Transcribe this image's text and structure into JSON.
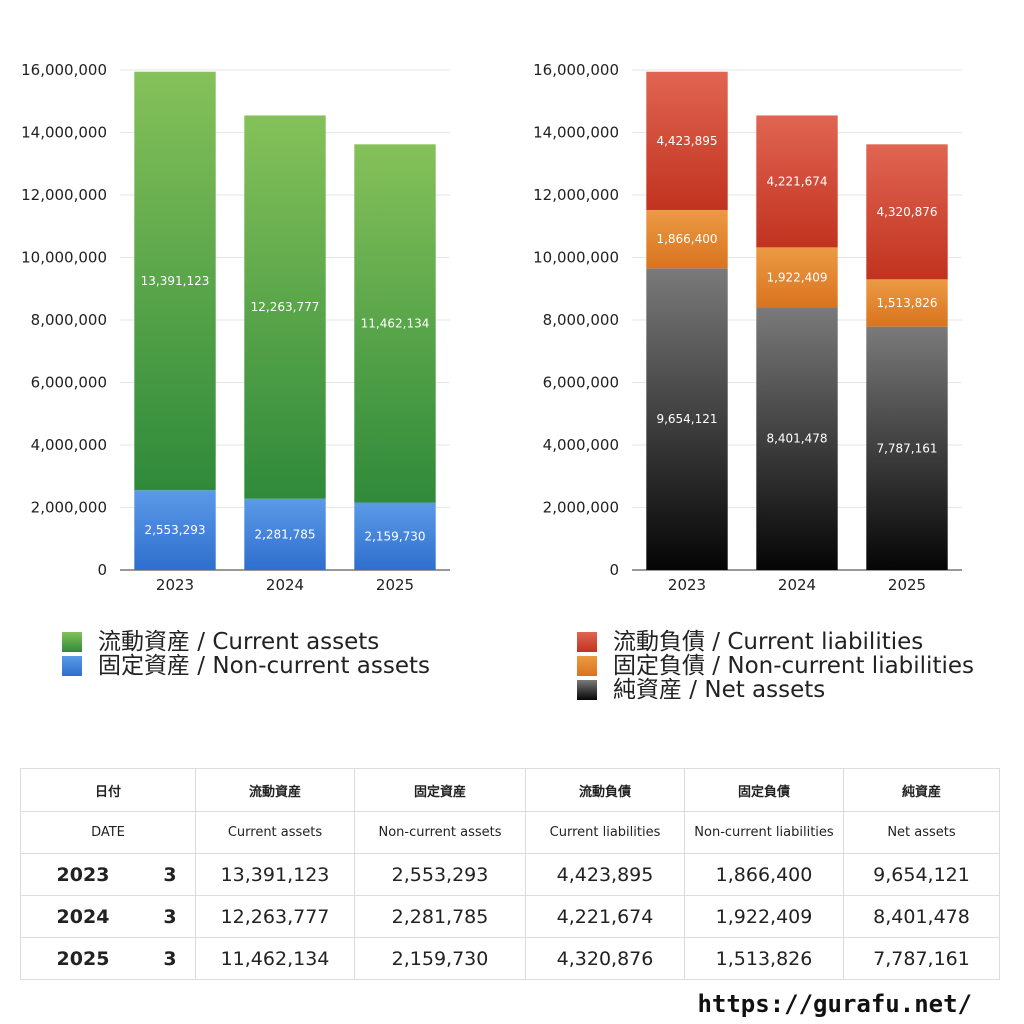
{
  "chart_data": [
    {
      "type": "bar",
      "stacked": true,
      "categories": [
        "2023",
        "2024",
        "2025"
      ],
      "ylim": [
        0,
        16000000
      ],
      "yticks": [
        0,
        2000000,
        4000000,
        6000000,
        8000000,
        10000000,
        12000000,
        14000000,
        16000000
      ],
      "ytick_labels": [
        "0",
        "2,000,000",
        "4,000,000",
        "6,000,000",
        "8,000,000",
        "10,000,000",
        "12,000,000",
        "14,000,000",
        "16,000,000"
      ],
      "grid": true,
      "series": [
        {
          "name": "固定資産 / Non-current assets",
          "values": [
            2553293,
            2281785,
            2159730
          ],
          "labels": [
            "2,553,293",
            "2,281,785",
            "2,159,730"
          ],
          "color_top": "#5b9ae6",
          "color_bottom": "#2f6fce"
        },
        {
          "name": "流動資産 / Current assets",
          "values": [
            13391123,
            12263777,
            11462134
          ],
          "labels": [
            "13,391,123",
            "12,263,777",
            "11,462,134"
          ],
          "color_top": "#85c15a",
          "color_bottom": "#2f8a3a"
        }
      ],
      "legend_order": [
        1,
        0
      ]
    },
    {
      "type": "bar",
      "stacked": true,
      "categories": [
        "2023",
        "2024",
        "2025"
      ],
      "ylim": [
        0,
        16000000
      ],
      "yticks": [
        0,
        2000000,
        4000000,
        6000000,
        8000000,
        10000000,
        12000000,
        14000000,
        16000000
      ],
      "ytick_labels": [
        "0",
        "2,000,000",
        "4,000,000",
        "6,000,000",
        "8,000,000",
        "10,000,000",
        "12,000,000",
        "14,000,000",
        "16,000,000"
      ],
      "grid": true,
      "series": [
        {
          "name": "純資産 / Net assets",
          "values": [
            9654121,
            8401478,
            7787161
          ],
          "labels": [
            "9,654,121",
            "8,401,478",
            "7,787,161"
          ],
          "color_top": "#7a7a7a",
          "color_bottom": "#050505"
        },
        {
          "name": "固定負債 / Non-current liabilities",
          "values": [
            1866400,
            1922409,
            1513826
          ],
          "labels": [
            "1,866,400",
            "1,922,409",
            "1,513,826"
          ],
          "color_top": "#ec9a44",
          "color_bottom": "#d9731f"
        },
        {
          "name": "流動負債 / Current liabilities",
          "values": [
            4423895,
            4221674,
            4320876
          ],
          "labels": [
            "4,423,895",
            "4,221,674",
            "4,320,876"
          ],
          "color_top": "#e06552",
          "color_bottom": "#c1331f"
        }
      ],
      "legend_order": [
        2,
        1,
        0
      ]
    }
  ],
  "table": {
    "header_jp": {
      "date": "日付",
      "ca": "流動資産",
      "nca": "固定資産",
      "cl": "流動負債",
      "ncl": "固定負債",
      "na": "純資産"
    },
    "header_en": {
      "date": "DATE",
      "ca": "Current assets",
      "nca": "Non-current assets",
      "cl": "Current liabilities",
      "ncl": "Non-current liabilities",
      "na": "Net assets"
    },
    "rows": [
      {
        "year": "2023",
        "month": "3",
        "ca": "13,391,123",
        "nca": "2,553,293",
        "cl": "4,423,895",
        "ncl": "1,866,400",
        "na": "9,654,121"
      },
      {
        "year": "2024",
        "month": "3",
        "ca": "12,263,777",
        "nca": "2,281,785",
        "cl": "4,221,674",
        "ncl": "1,922,409",
        "na": "8,401,478"
      },
      {
        "year": "2025",
        "month": "3",
        "ca": "11,462,134",
        "nca": "2,159,730",
        "cl": "4,320,876",
        "ncl": "1,513,826",
        "na": "7,787,161"
      }
    ]
  },
  "footer": {
    "url": "https://gurafu.net/"
  }
}
